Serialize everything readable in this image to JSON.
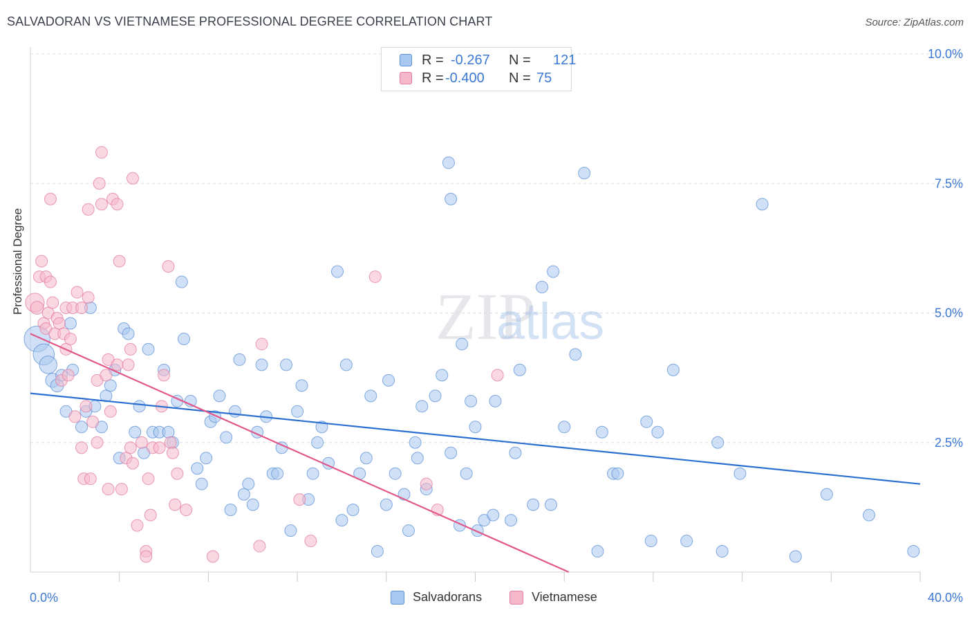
{
  "title": "SALVADORAN VS VIETNAMESE PROFESSIONAL DEGREE CORRELATION CHART",
  "source": "Source: ZipAtlas.com",
  "watermark": {
    "zip": "ZIP",
    "atlas": "atlas"
  },
  "legend": {
    "r_label": "R =",
    "n_label": "N =",
    "rows": [
      {
        "name": "Salvadorans",
        "r": "-0.267",
        "n": "121",
        "fill": "#a9c8f0",
        "stroke": "#5b8fd6"
      },
      {
        "name": "Vietnamese",
        "r": "-0.400",
        "n": "75",
        "fill": "#f5b8cb",
        "stroke": "#e27aa0"
      }
    ]
  },
  "chart_data": {
    "type": "scatter",
    "title": "SALVADORAN VS VIETNAMESE PROFESSIONAL DEGREE CORRELATION CHART",
    "xlabel": "",
    "ylabel": "Professional Degree",
    "xlim": [
      0,
      40
    ],
    "ylim": [
      0,
      10
    ],
    "x_tick_labels": [
      "0.0%",
      "40.0%"
    ],
    "y_ticks": [
      2.5,
      5.0,
      7.5,
      10.0
    ],
    "y_tick_labels": [
      "2.5%",
      "5.0%",
      "7.5%",
      "10.0%"
    ],
    "grid": true,
    "legend_position": "bottom",
    "series": [
      {
        "name": "Salvadorans",
        "color": "#5b8fd6",
        "fill": "#a9c8f0",
        "line_color": "#2b6fd0",
        "trend": {
          "x": [
            0,
            40
          ],
          "y": [
            3.45,
            1.7
          ]
        },
        "points": [
          [
            0.3,
            4.5,
            2.2
          ],
          [
            0.6,
            4.2,
            1.8
          ],
          [
            0.8,
            4.0,
            1.5
          ],
          [
            1.0,
            3.7,
            1.2
          ],
          [
            1.2,
            3.6,
            1.1
          ],
          [
            1.4,
            3.8,
            1.0
          ],
          [
            1.6,
            3.1,
            1.0
          ],
          [
            1.8,
            4.8,
            1.0
          ],
          [
            1.9,
            3.9,
            1.0
          ],
          [
            2.3,
            2.8,
            1.0
          ],
          [
            2.5,
            3.1,
            1.0
          ],
          [
            2.7,
            5.1,
            1.0
          ],
          [
            2.9,
            3.2,
            1.0
          ],
          [
            3.2,
            2.8,
            1.0
          ],
          [
            3.4,
            3.4,
            1.0
          ],
          [
            3.6,
            3.6,
            1.0
          ],
          [
            3.8,
            3.9,
            1.0
          ],
          [
            4.0,
            2.2,
            1.0
          ],
          [
            4.2,
            4.7,
            1.0
          ],
          [
            4.4,
            4.6,
            1.0
          ],
          [
            4.7,
            2.7,
            1.0
          ],
          [
            4.9,
            3.2,
            1.0
          ],
          [
            5.1,
            2.3,
            1.0
          ],
          [
            5.3,
            4.3,
            1.0
          ],
          [
            5.5,
            2.7,
            1.0
          ],
          [
            5.8,
            2.7,
            1.0
          ],
          [
            6.0,
            3.9,
            1.0
          ],
          [
            6.2,
            2.7,
            1.0
          ],
          [
            6.4,
            2.5,
            1.0
          ],
          [
            6.6,
            3.3,
            1.0
          ],
          [
            6.8,
            5.6,
            1.0
          ],
          [
            6.9,
            4.5,
            1.0
          ],
          [
            7.2,
            3.3,
            1.0
          ],
          [
            7.5,
            2.0,
            1.0
          ],
          [
            7.7,
            1.7,
            1.0
          ],
          [
            7.9,
            2.2,
            1.0
          ],
          [
            8.1,
            2.9,
            1.0
          ],
          [
            8.3,
            3.0,
            1.0
          ],
          [
            8.5,
            3.4,
            1.0
          ],
          [
            8.8,
            2.6,
            1.0
          ],
          [
            9.0,
            1.2,
            1.0
          ],
          [
            9.2,
            3.1,
            1.0
          ],
          [
            9.4,
            4.1,
            1.0
          ],
          [
            9.6,
            1.5,
            1.0
          ],
          [
            9.8,
            1.7,
            1.0
          ],
          [
            10.0,
            1.3,
            1.0
          ],
          [
            10.2,
            2.7,
            1.0
          ],
          [
            10.4,
            4.0,
            1.0
          ],
          [
            10.6,
            3.0,
            1.0
          ],
          [
            10.9,
            1.9,
            1.0
          ],
          [
            11.1,
            1.9,
            1.0
          ],
          [
            11.3,
            2.4,
            1.0
          ],
          [
            11.5,
            4.0,
            1.0
          ],
          [
            11.7,
            0.8,
            1.0
          ],
          [
            12.0,
            3.1,
            1.0
          ],
          [
            12.2,
            3.6,
            1.0
          ],
          [
            12.5,
            1.4,
            1.0
          ],
          [
            12.7,
            1.9,
            1.0
          ],
          [
            12.9,
            2.5,
            1.0
          ],
          [
            13.1,
            2.8,
            1.0
          ],
          [
            13.4,
            2.1,
            1.0
          ],
          [
            13.8,
            5.8,
            1.0
          ],
          [
            14.0,
            1.0,
            1.0
          ],
          [
            14.2,
            4.0,
            1.0
          ],
          [
            14.5,
            1.2,
            1.0
          ],
          [
            14.8,
            1.9,
            1.0
          ],
          [
            15.1,
            2.2,
            1.0
          ],
          [
            15.3,
            3.4,
            1.0
          ],
          [
            15.6,
            0.4,
            1.0
          ],
          [
            16.0,
            1.3,
            1.0
          ],
          [
            16.1,
            3.7,
            1.0
          ],
          [
            16.4,
            1.9,
            1.0
          ],
          [
            16.8,
            1.5,
            1.0
          ],
          [
            17.0,
            0.8,
            1.0
          ],
          [
            17.3,
            2.5,
            1.0
          ],
          [
            17.4,
            2.2,
            1.0
          ],
          [
            17.6,
            3.2,
            1.0
          ],
          [
            17.8,
            1.6,
            1.0
          ],
          [
            18.2,
            3.4,
            1.0
          ],
          [
            18.5,
            3.8,
            1.0
          ],
          [
            18.9,
            2.3,
            1.0
          ],
          [
            18.8,
            7.9,
            1.0
          ],
          [
            18.9,
            7.2,
            1.0
          ],
          [
            19.3,
            0.9,
            1.0
          ],
          [
            19.4,
            4.4,
            1.0
          ],
          [
            19.6,
            1.9,
            1.0
          ],
          [
            19.8,
            3.3,
            1.0
          ],
          [
            20.0,
            2.8,
            1.0
          ],
          [
            20.1,
            0.8,
            1.0
          ],
          [
            20.4,
            1.0,
            1.0
          ],
          [
            20.8,
            1.1,
            1.0
          ],
          [
            20.9,
            3.3,
            1.0
          ],
          [
            21.6,
            1.0,
            1.0
          ],
          [
            21.8,
            2.3,
            1.0
          ],
          [
            22.0,
            3.9,
            1.0
          ],
          [
            22.6,
            1.3,
            1.0
          ],
          [
            23.0,
            5.5,
            1.0
          ],
          [
            23.4,
            1.3,
            1.0
          ],
          [
            23.5,
            5.8,
            1.0
          ],
          [
            24.0,
            2.8,
            1.0
          ],
          [
            24.5,
            4.2,
            1.0
          ],
          [
            24.9,
            7.7,
            1.0
          ],
          [
            25.5,
            0.4,
            1.0
          ],
          [
            25.7,
            2.7,
            1.0
          ],
          [
            26.2,
            1.9,
            1.0
          ],
          [
            26.4,
            1.9,
            1.0
          ],
          [
            27.7,
            2.9,
            1.0
          ],
          [
            27.9,
            0.6,
            1.0
          ],
          [
            28.2,
            2.7,
            1.0
          ],
          [
            28.9,
            3.9,
            1.0
          ],
          [
            29.5,
            0.6,
            1.0
          ],
          [
            30.9,
            2.5,
            1.0
          ],
          [
            31.1,
            0.4,
            1.0
          ],
          [
            31.9,
            1.9,
            1.0
          ],
          [
            32.9,
            7.1,
            1.0
          ],
          [
            34.4,
            0.3,
            1.0
          ],
          [
            35.8,
            1.5,
            1.0
          ],
          [
            37.7,
            1.1,
            1.0
          ],
          [
            39.7,
            0.4,
            1.0
          ]
        ]
      },
      {
        "name": "Vietnamese",
        "color": "#e27aa0",
        "fill": "#f5b8cb",
        "line_color": "#e0588a",
        "trend": {
          "x": [
            0,
            24.2
          ],
          "y": [
            4.6,
            0.0
          ]
        },
        "points": [
          [
            0.2,
            5.2,
            1.6
          ],
          [
            0.3,
            5.1,
            1.1
          ],
          [
            0.4,
            5.7,
            1.0
          ],
          [
            0.5,
            6.0,
            1.0
          ],
          [
            0.6,
            4.8,
            1.0
          ],
          [
            0.7,
            4.7,
            1.0
          ],
          [
            0.7,
            5.7,
            1.0
          ],
          [
            0.8,
            5.0,
            1.0
          ],
          [
            0.9,
            5.6,
            1.0
          ],
          [
            0.9,
            7.2,
            1.0
          ],
          [
            1.0,
            5.2,
            1.0
          ],
          [
            1.1,
            4.6,
            1.0
          ],
          [
            1.2,
            4.9,
            1.0
          ],
          [
            1.3,
            4.8,
            1.0
          ],
          [
            1.4,
            3.7,
            1.0
          ],
          [
            1.5,
            4.6,
            1.0
          ],
          [
            1.6,
            4.3,
            1.0
          ],
          [
            1.6,
            5.1,
            1.0
          ],
          [
            1.7,
            3.8,
            1.0
          ],
          [
            1.8,
            4.5,
            1.0
          ],
          [
            1.9,
            5.1,
            1.0
          ],
          [
            2.0,
            3.0,
            1.0
          ],
          [
            2.1,
            5.4,
            1.0
          ],
          [
            2.3,
            2.4,
            1.0
          ],
          [
            2.3,
            5.1,
            1.0
          ],
          [
            2.4,
            1.8,
            1.0
          ],
          [
            2.5,
            3.2,
            1.0
          ],
          [
            2.6,
            7.0,
            1.0
          ],
          [
            2.7,
            1.8,
            1.0
          ],
          [
            2.6,
            5.3,
            1.0
          ],
          [
            2.8,
            2.9,
            1.0
          ],
          [
            3.0,
            3.7,
            1.0
          ],
          [
            3.0,
            2.5,
            1.0
          ],
          [
            3.1,
            7.5,
            1.0
          ],
          [
            3.2,
            7.1,
            1.0
          ],
          [
            3.2,
            8.1,
            1.0
          ],
          [
            3.4,
            3.8,
            1.0
          ],
          [
            3.5,
            4.1,
            1.0
          ],
          [
            3.5,
            1.6,
            1.0
          ],
          [
            3.6,
            3.1,
            1.0
          ],
          [
            3.7,
            7.2,
            1.0
          ],
          [
            3.9,
            7.1,
            1.0
          ],
          [
            3.9,
            4.0,
            1.0
          ],
          [
            4.0,
            6.0,
            1.0
          ],
          [
            4.1,
            1.6,
            1.0
          ],
          [
            4.3,
            2.2,
            1.0
          ],
          [
            4.4,
            4.0,
            1.0
          ],
          [
            4.5,
            2.4,
            1.0
          ],
          [
            4.6,
            2.1,
            1.0
          ],
          [
            4.5,
            4.3,
            1.0
          ],
          [
            4.6,
            7.6,
            1.0
          ],
          [
            4.8,
            0.9,
            1.0
          ],
          [
            5.0,
            2.5,
            1.0
          ],
          [
            5.2,
            0.4,
            1.0
          ],
          [
            5.2,
            0.3,
            1.0
          ],
          [
            5.3,
            1.8,
            1.0
          ],
          [
            5.4,
            1.1,
            1.0
          ],
          [
            5.5,
            2.4,
            1.0
          ],
          [
            5.8,
            2.4,
            1.0
          ],
          [
            5.9,
            3.2,
            1.0
          ],
          [
            6.0,
            3.8,
            1.0
          ],
          [
            6.2,
            5.9,
            1.0
          ],
          [
            6.3,
            2.5,
            1.0
          ],
          [
            6.4,
            2.3,
            1.0
          ],
          [
            6.5,
            1.3,
            1.0
          ],
          [
            6.6,
            1.9,
            1.0
          ],
          [
            7.0,
            1.2,
            1.0
          ],
          [
            8.2,
            0.3,
            1.0
          ],
          [
            10.3,
            0.5,
            1.0
          ],
          [
            10.4,
            4.4,
            1.0
          ],
          [
            12.1,
            1.4,
            1.0
          ],
          [
            12.6,
            0.6,
            1.0
          ],
          [
            15.5,
            5.7,
            1.0
          ],
          [
            17.8,
            1.7,
            1.0
          ],
          [
            18.3,
            1.2,
            1.0
          ],
          [
            21.0,
            3.8,
            1.0
          ]
        ]
      }
    ]
  }
}
